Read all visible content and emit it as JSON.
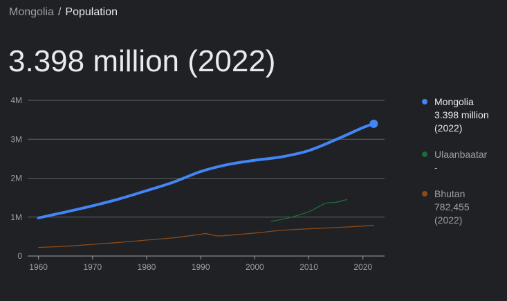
{
  "breadcrumb": {
    "parent": "Mongolia",
    "separator": "/",
    "current": "Population"
  },
  "headline": "3.398 million (2022)",
  "legend": [
    {
      "name": "Mongolia",
      "value": "3.398 million",
      "year": "(2022)",
      "color": "#4285f4",
      "active": true,
      "icon": "circle-dot-icon"
    },
    {
      "name": "Ulaanbaatar",
      "value": "-",
      "year": "",
      "color": "#1e6b3a",
      "active": false,
      "icon": "circle-dot-icon"
    },
    {
      "name": "Bhutan",
      "value": "782,455",
      "year": "(2022)",
      "color": "#8a4b1b",
      "active": false,
      "icon": "circle-dot-icon"
    }
  ],
  "chart_data": {
    "type": "line",
    "xlim": [
      1958,
      2024
    ],
    "ylim": [
      0,
      4000000
    ],
    "x_ticks": [
      1960,
      1970,
      1980,
      1990,
      2000,
      2010,
      2020
    ],
    "x_tick_labels": [
      "1960",
      "1970",
      "1980",
      "1990",
      "2000",
      "2010",
      "2020"
    ],
    "y_ticks": [
      0,
      1000000,
      2000000,
      3000000,
      4000000
    ],
    "y_tick_labels": [
      "0",
      "1M",
      "2M",
      "3M",
      "4M"
    ],
    "grid": true,
    "legend_position": "right",
    "series": [
      {
        "name": "Mongolia",
        "color": "#4285f4",
        "emphasis": true,
        "points": [
          [
            1960,
            980000
          ],
          [
            1965,
            1130000
          ],
          [
            1970,
            1290000
          ],
          [
            1975,
            1470000
          ],
          [
            1980,
            1680000
          ],
          [
            1985,
            1900000
          ],
          [
            1990,
            2170000
          ],
          [
            1995,
            2350000
          ],
          [
            2000,
            2460000
          ],
          [
            2005,
            2550000
          ],
          [
            2010,
            2710000
          ],
          [
            2015,
            2990000
          ],
          [
            2020,
            3300000
          ],
          [
            2022,
            3398000
          ]
        ]
      },
      {
        "name": "Ulaanbaatar",
        "color": "#1e6b3a",
        "emphasis": false,
        "points": [
          [
            2003,
            890000
          ],
          [
            2006,
            970000
          ],
          [
            2010,
            1140000
          ],
          [
            2013,
            1350000
          ],
          [
            2015,
            1380000
          ],
          [
            2017,
            1450000
          ]
        ]
      },
      {
        "name": "Bhutan",
        "color": "#8a4b1b",
        "emphasis": false,
        "points": [
          [
            1960,
            220000
          ],
          [
            1965,
            250000
          ],
          [
            1970,
            300000
          ],
          [
            1975,
            350000
          ],
          [
            1980,
            410000
          ],
          [
            1985,
            470000
          ],
          [
            1990,
            560000
          ],
          [
            1991,
            575000
          ],
          [
            1993,
            520000
          ],
          [
            1995,
            530000
          ],
          [
            2000,
            590000
          ],
          [
            2005,
            660000
          ],
          [
            2010,
            700000
          ],
          [
            2015,
            730000
          ],
          [
            2020,
            770000
          ],
          [
            2022,
            782455
          ]
        ]
      }
    ]
  }
}
